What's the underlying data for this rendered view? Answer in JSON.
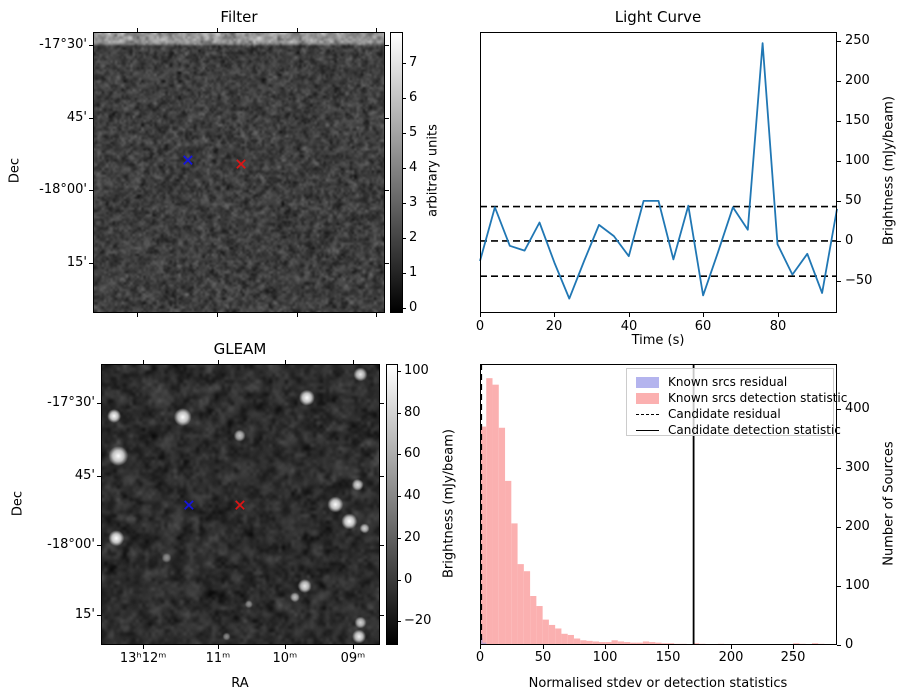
{
  "figure": {
    "bg": "#ffffff"
  },
  "panels": {
    "filter": {
      "title": "Filter",
      "ylabel": "Dec",
      "yticks": [
        {
          "label": "-17°30'",
          "pos": 0.046
        },
        {
          "label": "45'",
          "pos": 0.306
        },
        {
          "label": "-18°00'",
          "pos": 0.562
        },
        {
          "label": "15'",
          "pos": 0.822
        }
      ],
      "xticks_pos": [
        0.15,
        0.425,
        0.7,
        0.97
      ],
      "colorbar": {
        "label": "arbitrary units",
        "ticks": [
          {
            "label": "7",
            "pos": 0.11
          },
          {
            "label": "6",
            "pos": 0.234
          },
          {
            "label": "5",
            "pos": 0.359
          },
          {
            "label": "4",
            "pos": 0.484
          },
          {
            "label": "3",
            "pos": 0.608
          },
          {
            "label": "2",
            "pos": 0.733
          },
          {
            "label": "1",
            "pos": 0.857
          },
          {
            "label": "0",
            "pos": 0.982
          }
        ]
      },
      "markers": [
        {
          "name": "blue-cross-marker",
          "color": "#1515dd",
          "x": 0.325,
          "y": 0.456
        },
        {
          "name": "red-cross-marker",
          "color": "#dd1515",
          "x": 0.507,
          "y": 0.47
        }
      ]
    },
    "gleam": {
      "title": "GLEAM",
      "xlabel": "RA",
      "ylabel": "Dec",
      "yticks": [
        {
          "label": "-17°30'",
          "pos": 0.138
        },
        {
          "label": "45'",
          "pos": 0.398
        },
        {
          "label": "-18°00'",
          "pos": 0.644
        },
        {
          "label": "15'",
          "pos": 0.893
        }
      ],
      "xticks": [
        {
          "label": "13ʰ12ᵐ",
          "pos": 0.151
        },
        {
          "label": "11ᵐ",
          "pos": 0.419
        },
        {
          "label": "10ᵐ",
          "pos": 0.659
        },
        {
          "label": "09ᵐ",
          "pos": 0.903
        }
      ],
      "colorbar": {
        "label": "Brightness (mJy/beam)",
        "ticks": [
          {
            "label": "100",
            "pos": 0.025
          },
          {
            "label": "80",
            "pos": 0.173
          },
          {
            "label": "60",
            "pos": 0.322
          },
          {
            "label": "40",
            "pos": 0.47
          },
          {
            "label": "20",
            "pos": 0.618
          },
          {
            "label": "0",
            "pos": 0.767
          },
          {
            "label": "−20",
            "pos": 0.915
          }
        ]
      },
      "markers": [
        {
          "name": "blue-cross-marker",
          "color": "#1515dd",
          "x": 0.315,
          "y": 0.502
        },
        {
          "name": "red-cross-marker",
          "color": "#dd1515",
          "x": 0.498,
          "y": 0.502
        }
      ],
      "bright_sources": [
        [
          0.047,
          0.185,
          7,
          1
        ],
        [
          0.293,
          0.189,
          9,
          1
        ],
        [
          0.497,
          0.255,
          6,
          0.75
        ],
        [
          0.738,
          0.12,
          8,
          1
        ],
        [
          0.93,
          0.037,
          7,
          0.9
        ],
        [
          0.062,
          0.327,
          10,
          1
        ],
        [
          0.92,
          0.43,
          6,
          0.85
        ],
        [
          0.84,
          0.5,
          8,
          1
        ],
        [
          0.89,
          0.56,
          8,
          1
        ],
        [
          0.945,
          0.585,
          5,
          0.8
        ],
        [
          0.055,
          0.62,
          8,
          1
        ],
        [
          0.235,
          0.69,
          5,
          0.5
        ],
        [
          0.73,
          0.79,
          7,
          0.9
        ],
        [
          0.695,
          0.83,
          5,
          0.7
        ],
        [
          0.53,
          0.855,
          4,
          0.5
        ],
        [
          0.93,
          0.92,
          6,
          0.8
        ],
        [
          0.925,
          0.97,
          7,
          0.95
        ],
        [
          0.45,
          0.97,
          4,
          0.5
        ]
      ]
    }
  },
  "chart_data": [
    {
      "type": "line",
      "title": "Light Curve",
      "xlabel": "Time (s)",
      "ylabel": "Brightness (mJy/beam)",
      "x": [
        0,
        4,
        8,
        12,
        16,
        20,
        24,
        28,
        32,
        36,
        40,
        44,
        48,
        52,
        56,
        60,
        64,
        68,
        72,
        76,
        80,
        84,
        88,
        92,
        96
      ],
      "y": [
        -25,
        42,
        -6,
        -12,
        23,
        -27,
        -72,
        -25,
        20,
        6,
        -19,
        50,
        50,
        -23,
        44,
        -68,
        -14,
        42,
        14,
        247,
        -4,
        -42,
        -16,
        -65,
        40
      ],
      "dashed_hlines": [
        43,
        0,
        -44
      ],
      "xlim": [
        0,
        96
      ],
      "ylim": [
        -90,
        261
      ],
      "xticks": [
        0,
        20,
        40,
        60,
        80
      ],
      "yticks": [
        -50,
        0,
        50,
        100,
        150,
        200,
        250
      ],
      "line_color": "#2077b4",
      "yaxis_side": "right",
      "grid": false
    },
    {
      "type": "bar",
      "title": "",
      "xlabel": "Normalised stdev or detection statistics",
      "ylabel": "Number of Sources",
      "bin_width": 5,
      "bin_start": 0,
      "counts": [
        370,
        452,
        441,
        368,
        278,
        206,
        137,
        125,
        83,
        66,
        43,
        34,
        28,
        19,
        17,
        11,
        8,
        7,
        6,
        5,
        5,
        8,
        6,
        5,
        4,
        4,
        6,
        5,
        4,
        3,
        3,
        2,
        2,
        0,
        3,
        2,
        0,
        0,
        2,
        0,
        0,
        0,
        0,
        0,
        0,
        0,
        0,
        0,
        0,
        0,
        3,
        2,
        0,
        3,
        2,
        0
      ],
      "bar_color": "#fbb0b0",
      "blue_bars": [
        {
          "x0": 0,
          "x1": 2,
          "count": 12
        },
        {
          "x0": 2,
          "x1": 5,
          "count": 4
        }
      ],
      "blue_color": "#9a9ae0",
      "vlines": [
        {
          "style": "dashed",
          "x": 1,
          "label": "Candidate residual"
        },
        {
          "style": "solid",
          "x": 170.5,
          "label": "Candidate detection statistic"
        }
      ],
      "xlim": [
        0,
        285
      ],
      "ylim": [
        0,
        476
      ],
      "xticks": [
        0,
        50,
        100,
        150,
        200,
        250
      ],
      "yticks": [
        0,
        100,
        200,
        300,
        400
      ],
      "legend": [
        {
          "swatch": "patch",
          "color": "#b4b4ee",
          "label": "Known srcs residual"
        },
        {
          "swatch": "patch",
          "color": "#fbb0b0",
          "label": "Known srcs detection statistic"
        },
        {
          "swatch": "dashed",
          "color": "#000000",
          "label": "Candidate residual"
        },
        {
          "swatch": "solid",
          "color": "#000000",
          "label": "Candidate detection statistic"
        }
      ],
      "yaxis_side": "right",
      "grid": false
    }
  ]
}
